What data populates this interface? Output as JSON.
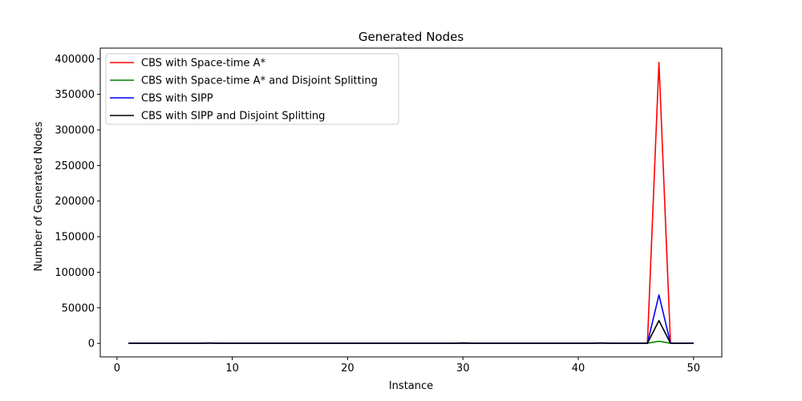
{
  "chart_data": {
    "type": "line",
    "title": "Generated Nodes",
    "xlabel": "Instance",
    "ylabel": "Number of Generated Nodes",
    "xlim": [
      -1.45,
      52.45
    ],
    "ylim": [
      -19000,
      415000
    ],
    "xticks": [
      0,
      10,
      20,
      30,
      40,
      50
    ],
    "yticks": [
      0,
      50000,
      100000,
      150000,
      200000,
      250000,
      300000,
      350000,
      400000
    ],
    "xtick_labels": [
      "0",
      "10",
      "20",
      "30",
      "40",
      "50"
    ],
    "ytick_labels": [
      "0",
      "50000",
      "100000",
      "150000",
      "200000",
      "250000",
      "300000",
      "350000",
      "400000"
    ],
    "grid": false,
    "legend_position": "top-left",
    "x": [
      1,
      2,
      3,
      4,
      5,
      6,
      7,
      8,
      9,
      10,
      11,
      12,
      13,
      14,
      15,
      16,
      17,
      18,
      19,
      20,
      21,
      22,
      23,
      24,
      25,
      26,
      27,
      28,
      29,
      30,
      31,
      32,
      33,
      34,
      35,
      36,
      37,
      38,
      39,
      40,
      41,
      42,
      43,
      44,
      45,
      46,
      47,
      48,
      49,
      50
    ],
    "series": [
      {
        "name": "CBS with Space-time A*",
        "color": "#ff0000",
        "values": [
          300,
          300,
          300,
          300,
          300,
          300,
          300,
          600,
          300,
          300,
          300,
          300,
          300,
          300,
          300,
          300,
          300,
          300,
          300,
          300,
          300,
          300,
          300,
          300,
          300,
          300,
          300,
          300,
          300,
          600,
          300,
          300,
          300,
          300,
          300,
          300,
          300,
          300,
          300,
          300,
          300,
          600,
          300,
          300,
          300,
          300,
          395000,
          300,
          300,
          300
        ]
      },
      {
        "name": "CBS with Space-time A* and Disjoint Splitting",
        "color": "#008000",
        "values": [
          200,
          200,
          200,
          200,
          200,
          200,
          200,
          400,
          200,
          200,
          200,
          200,
          200,
          200,
          200,
          200,
          200,
          200,
          200,
          200,
          200,
          200,
          200,
          200,
          200,
          200,
          200,
          200,
          200,
          300,
          200,
          200,
          200,
          200,
          200,
          200,
          200,
          200,
          200,
          200,
          200,
          500,
          200,
          200,
          200,
          200,
          3000,
          200,
          200,
          200
        ]
      },
      {
        "name": "CBS with SIPP",
        "color": "#0000ff",
        "values": [
          250,
          250,
          250,
          250,
          250,
          250,
          250,
          450,
          250,
          250,
          250,
          250,
          250,
          250,
          250,
          250,
          250,
          250,
          250,
          250,
          250,
          250,
          250,
          250,
          250,
          250,
          250,
          250,
          250,
          500,
          250,
          250,
          250,
          250,
          250,
          250,
          250,
          250,
          250,
          250,
          250,
          400,
          250,
          250,
          250,
          250,
          68000,
          250,
          250,
          250
        ]
      },
      {
        "name": "CBS with SIPP and Disjoint Splitting",
        "color": "#000000",
        "values": [
          150,
          150,
          150,
          150,
          150,
          150,
          150,
          300,
          150,
          150,
          150,
          150,
          150,
          150,
          150,
          150,
          150,
          150,
          150,
          150,
          150,
          150,
          150,
          150,
          150,
          150,
          150,
          150,
          150,
          350,
          150,
          150,
          150,
          150,
          150,
          150,
          150,
          150,
          150,
          150,
          150,
          300,
          150,
          150,
          150,
          150,
          32000,
          150,
          150,
          150
        ]
      }
    ]
  }
}
